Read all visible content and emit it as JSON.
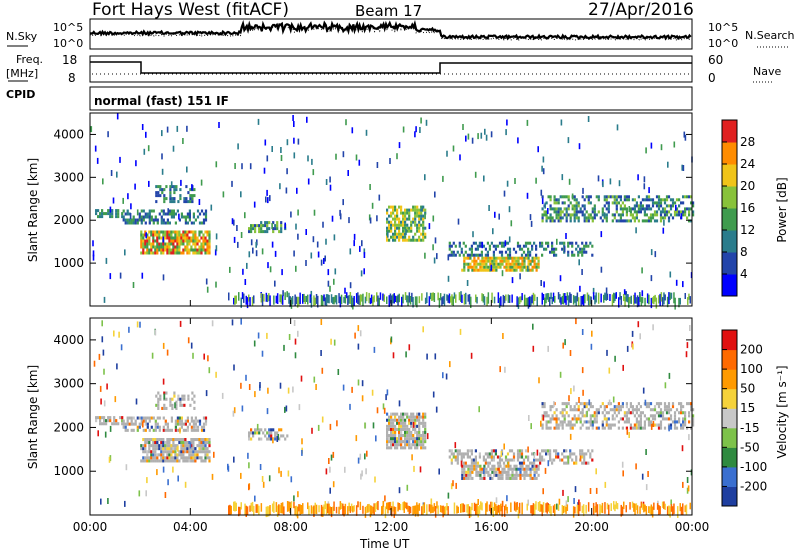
{
  "header": {
    "station": "Fort Hays West (fitACF)",
    "beam": "Beam 17",
    "date": "27/Apr/2016"
  },
  "top_panel": {
    "left_label": "N.Sky",
    "right_label": "N.Search",
    "ticks": [
      "10^5",
      "10^0"
    ]
  },
  "freq_panel": {
    "left_label_1": "Freq.",
    "left_label_2": "[MHz]",
    "left_ticks": [
      "18",
      "8"
    ],
    "right_label": "Nave",
    "right_ticks": [
      "60",
      "0"
    ]
  },
  "cpid": {
    "label": "CPID",
    "value": "normal (fast) 151 IF"
  },
  "chart_data": [
    {
      "type": "heatmap",
      "name": "power",
      "ylabel": "Slant Range [km]",
      "xlabel": "",
      "ylim": [
        0,
        4500
      ],
      "xlim": [
        0,
        24
      ],
      "y_ticks": [
        "1000",
        "2000",
        "3000",
        "4000"
      ],
      "colorbar": {
        "label": "Power [dB]",
        "ticks": [
          "4",
          "8",
          "12",
          "16",
          "20",
          "24",
          "28"
        ],
        "colors": [
          "#0000ff",
          "#2244aa",
          "#2a7c8c",
          "#3f9b4e",
          "#88c23a",
          "#f0c419",
          "#ff8c00",
          "#e02020"
        ]
      }
    },
    {
      "type": "heatmap",
      "name": "velocity",
      "ylabel": "Slant Range [km]",
      "xlabel": "Time UT",
      "ylim": [
        0,
        4500
      ],
      "xlim": [
        0,
        24
      ],
      "y_ticks": [
        "1000",
        "2000",
        "3000",
        "4000"
      ],
      "x_ticks": [
        "00:00",
        "04:00",
        "08:00",
        "12:00",
        "16:00",
        "20:00",
        "00:00"
      ],
      "colorbar": {
        "label": "Velocity [m s⁻¹]",
        "ticks": [
          "200",
          "100",
          "50",
          "15",
          "-15",
          "-50",
          "-100",
          "-200"
        ],
        "colors": [
          "#1f3fa0",
          "#3a6fd0",
          "#2f8a40",
          "#7dc24a",
          "#c8c8c8",
          "#f5d23a",
          "#ff9a00",
          "#ff6a00",
          "#e01010"
        ]
      }
    }
  ],
  "colors": {
    "ground_scatter": "#b0b0b0"
  }
}
